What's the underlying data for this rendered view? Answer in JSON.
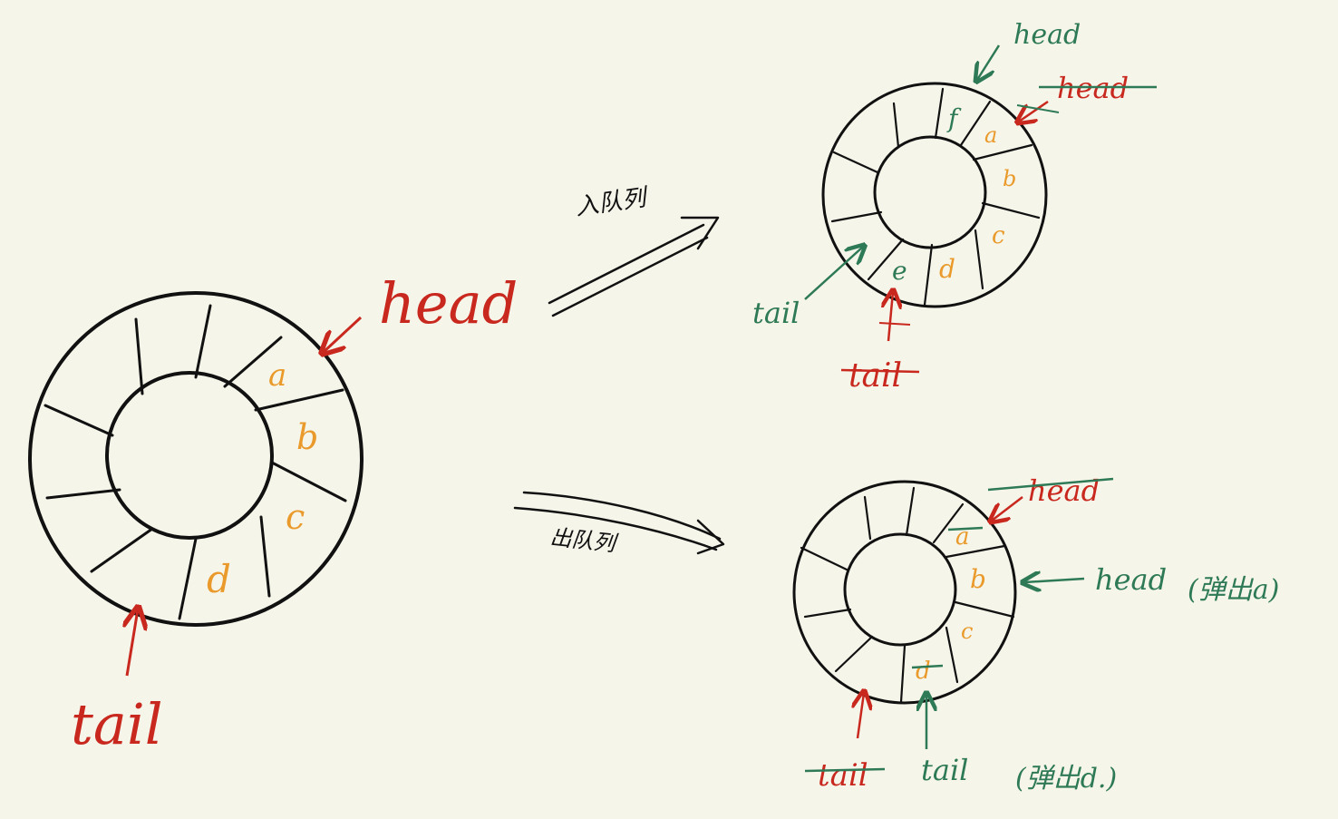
{
  "colors": {
    "background": "#f6f5ea",
    "ink": "#111111",
    "red": "#c8281e",
    "green": "#2e7a56",
    "orange": "#e99a2b"
  },
  "main_ring": {
    "cells": [
      "a",
      "b",
      "c",
      "d"
    ],
    "head_label": "head",
    "tail_label": "tail"
  },
  "enqueue": {
    "arrow_label": "入队列",
    "cells": [
      "f",
      "a",
      "b",
      "c",
      "d",
      "e"
    ],
    "old_head_label": "head",
    "new_head_label": "head",
    "old_tail_label": "tail",
    "new_tail_label": "tail"
  },
  "dequeue": {
    "arrow_label": "出队列",
    "cells": [
      "a",
      "b",
      "c",
      "d"
    ],
    "old_head_label": "head",
    "new_head_label": "head",
    "pop_head_note": "(弹出a)",
    "old_tail_label": "tail",
    "new_tail_label": "tail",
    "pop_tail_note": "(弹出d.)"
  }
}
